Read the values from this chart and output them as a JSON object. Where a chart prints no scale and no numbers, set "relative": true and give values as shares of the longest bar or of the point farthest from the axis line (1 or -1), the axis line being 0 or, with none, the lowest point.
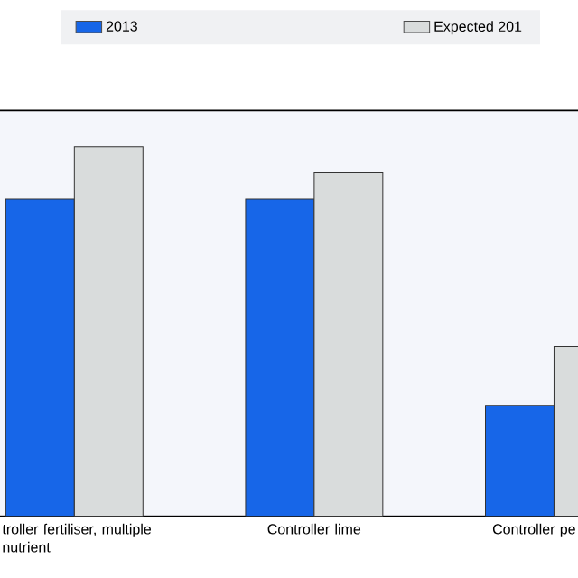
{
  "chart_data": {
    "type": "bar",
    "relative": true,
    "categories": [
      "troller fertiliser, multiple nutrient",
      "Controller lime",
      "Controller pe"
    ],
    "series": [
      {
        "name": "2013",
        "color": "#1766e8",
        "values": [
          0.86,
          0.86,
          0.3
        ]
      },
      {
        "name": "Expected 201",
        "color": "#d9dcdc",
        "values": [
          1,
          0.93,
          0.46
        ]
      }
    ],
    "legend": "top"
  }
}
